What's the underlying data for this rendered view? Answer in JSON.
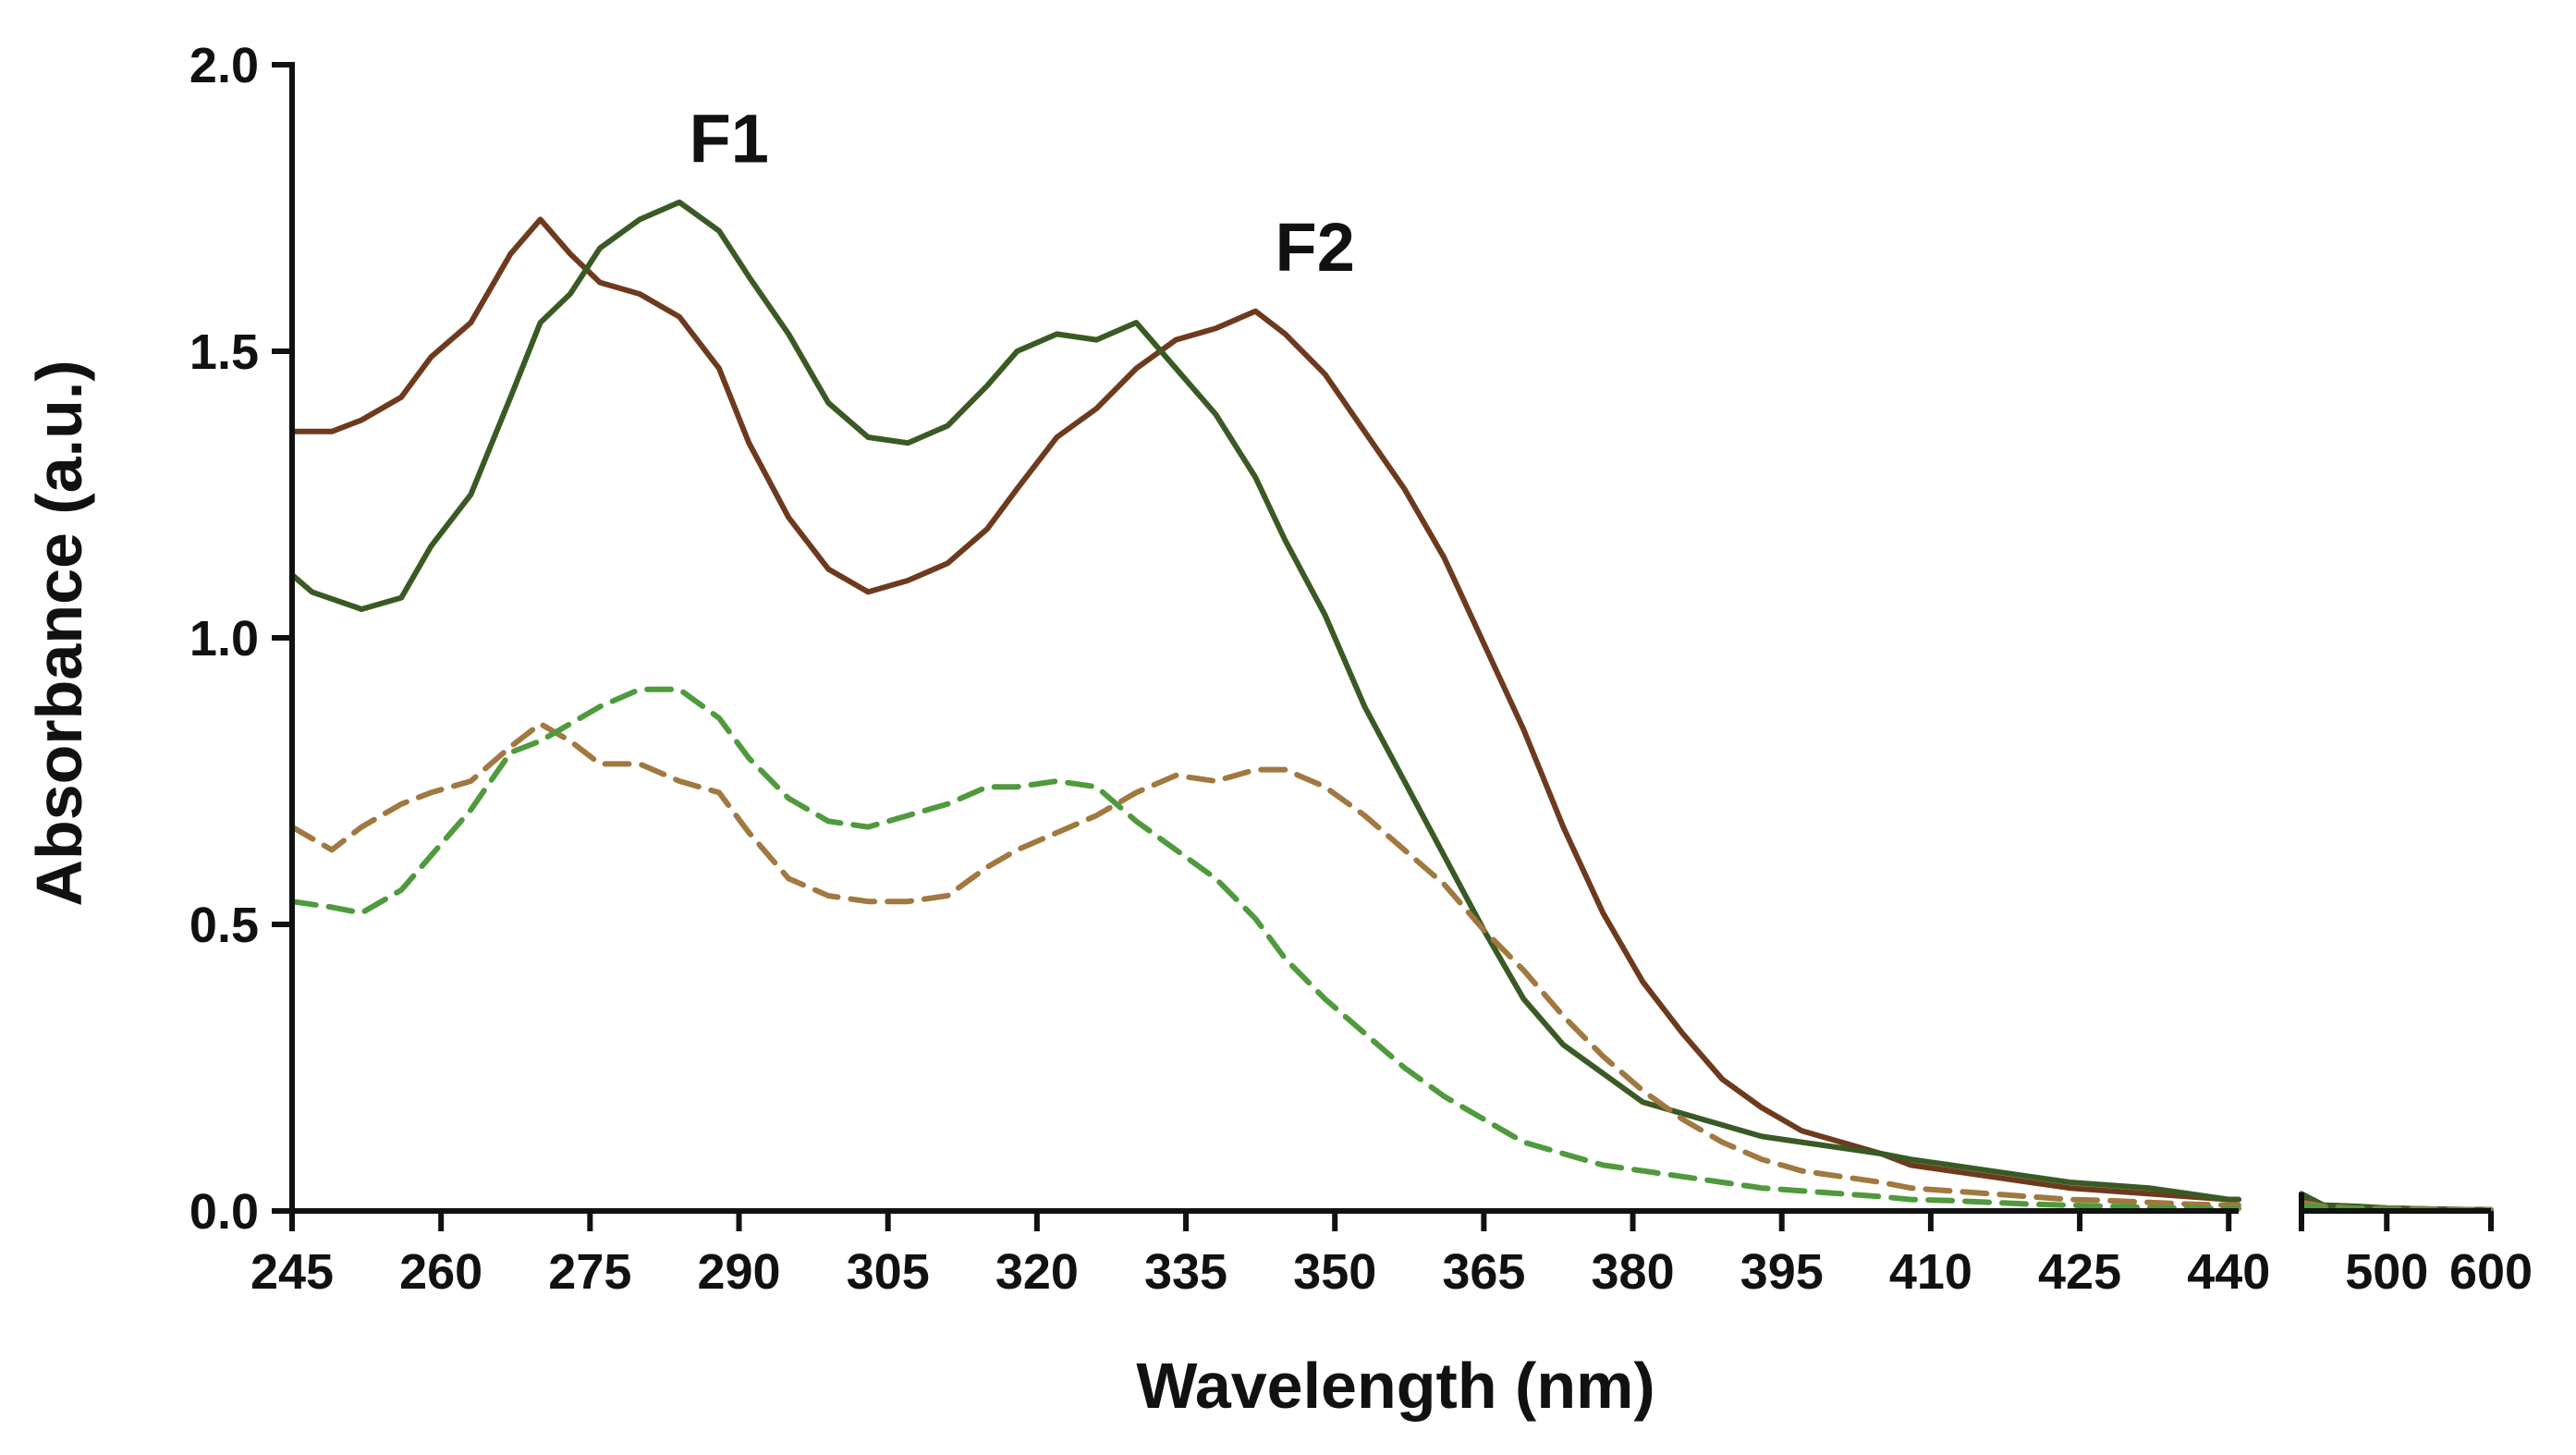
{
  "chart_data": {
    "type": "line",
    "title": "",
    "xlabel": "Wavelength (nm)",
    "ylabel": "Absorbance (a.u.)",
    "ylim": [
      0,
      2.0
    ],
    "yticks": [
      "0.0",
      "0.5",
      "1.0",
      "1.5",
      "2.0"
    ],
    "xticks_segment1": [
      "245",
      "260",
      "275",
      "290",
      "305",
      "320",
      "335",
      "350",
      "365",
      "380",
      "395",
      "410",
      "425",
      "440"
    ],
    "xticks_segment2": [
      "500",
      "600"
    ],
    "x_axis_break": {
      "segment1": [
        245,
        441
      ],
      "segment2": [
        446,
        600
      ]
    },
    "annotations": [
      {
        "text": "F1",
        "x": 289,
        "y": 1.83
      },
      {
        "text": "F2",
        "x": 348,
        "y": 1.64
      }
    ],
    "series": [
      {
        "name": "brown-solid",
        "color": "#6e3a1e",
        "dash": false,
        "x": [
          245,
          249,
          252,
          256,
          259,
          263,
          267,
          270,
          273,
          276,
          280,
          284,
          288,
          291,
          295,
          299,
          303,
          307,
          311,
          315,
          318,
          322,
          326,
          330,
          334,
          338,
          342,
          345,
          349,
          353,
          357,
          361,
          365,
          369,
          373,
          377,
          381,
          385,
          389,
          393,
          397,
          401,
          405,
          408,
          412,
          416,
          420,
          424,
          428,
          432,
          436,
          440,
          441,
          446,
          460,
          480,
          500,
          550,
          600
        ],
        "y": [
          1.36,
          1.36,
          1.38,
          1.42,
          1.49,
          1.55,
          1.67,
          1.73,
          1.67,
          1.62,
          1.6,
          1.56,
          1.47,
          1.34,
          1.21,
          1.12,
          1.08,
          1.1,
          1.13,
          1.19,
          1.26,
          1.35,
          1.4,
          1.47,
          1.52,
          1.54,
          1.57,
          1.53,
          1.46,
          1.36,
          1.26,
          1.14,
          0.99,
          0.84,
          0.67,
          0.52,
          0.4,
          0.31,
          0.23,
          0.18,
          0.14,
          0.12,
          0.1,
          0.08,
          0.07,
          0.06,
          0.05,
          0.04,
          0.035,
          0.03,
          0.025,
          0.02,
          0.02,
          0.02,
          0.01,
          0.008,
          0.005,
          0.003,
          0.002
        ]
      },
      {
        "name": "green-solid",
        "color": "#3a5a24",
        "dash": false,
        "x": [
          245,
          247,
          252,
          256,
          259,
          263,
          267,
          270,
          273,
          276,
          280,
          284,
          288,
          291,
          295,
          299,
          303,
          307,
          311,
          315,
          318,
          322,
          326,
          330,
          334,
          338,
          342,
          345,
          349,
          353,
          357,
          361,
          365,
          369,
          373,
          377,
          381,
          385,
          389,
          393,
          397,
          401,
          405,
          408,
          412,
          416,
          420,
          424,
          428,
          432,
          436,
          440,
          441,
          446,
          460,
          480,
          500,
          550,
          600
        ],
        "y": [
          1.11,
          1.08,
          1.05,
          1.07,
          1.16,
          1.25,
          1.42,
          1.55,
          1.6,
          1.68,
          1.73,
          1.76,
          1.71,
          1.63,
          1.53,
          1.41,
          1.35,
          1.34,
          1.37,
          1.44,
          1.5,
          1.53,
          1.52,
          1.55,
          1.47,
          1.39,
          1.28,
          1.17,
          1.04,
          0.88,
          0.75,
          0.62,
          0.49,
          0.37,
          0.29,
          0.24,
          0.19,
          0.17,
          0.15,
          0.13,
          0.12,
          0.11,
          0.1,
          0.09,
          0.08,
          0.07,
          0.06,
          0.05,
          0.045,
          0.04,
          0.03,
          0.02,
          0.02,
          0.03,
          0.01,
          0.008,
          0.005,
          0.003,
          0.002
        ]
      },
      {
        "name": "brown-dashed",
        "color": "#a07840",
        "dash": true,
        "x": [
          245,
          249,
          252,
          256,
          259,
          263,
          267,
          270,
          273,
          276,
          280,
          284,
          288,
          291,
          295,
          299,
          303,
          307,
          311,
          315,
          318,
          322,
          326,
          330,
          334,
          338,
          342,
          345,
          349,
          353,
          357,
          361,
          365,
          369,
          373,
          377,
          381,
          385,
          389,
          393,
          397,
          401,
          405,
          408,
          412,
          416,
          420,
          424,
          428,
          432,
          436,
          440,
          441,
          446,
          460,
          480,
          500,
          550,
          600
        ],
        "y": [
          0.67,
          0.63,
          0.67,
          0.71,
          0.73,
          0.75,
          0.81,
          0.85,
          0.82,
          0.78,
          0.78,
          0.75,
          0.73,
          0.66,
          0.58,
          0.55,
          0.54,
          0.54,
          0.55,
          0.6,
          0.63,
          0.66,
          0.69,
          0.73,
          0.76,
          0.75,
          0.77,
          0.77,
          0.74,
          0.69,
          0.63,
          0.57,
          0.49,
          0.42,
          0.34,
          0.27,
          0.21,
          0.16,
          0.12,
          0.09,
          0.07,
          0.06,
          0.05,
          0.04,
          0.035,
          0.03,
          0.025,
          0.02,
          0.018,
          0.015,
          0.012,
          0.01,
          0.01,
          0.015,
          0.008,
          0.005,
          0.004,
          0.003,
          0.002
        ]
      },
      {
        "name": "green-dashed",
        "color": "#4f9a3c",
        "dash": true,
        "x": [
          245,
          249,
          252,
          256,
          259,
          263,
          267,
          270,
          273,
          276,
          280,
          284,
          288,
          291,
          295,
          299,
          303,
          307,
          311,
          315,
          318,
          322,
          326,
          330,
          334,
          338,
          342,
          345,
          349,
          353,
          357,
          361,
          365,
          369,
          373,
          377,
          381,
          385,
          389,
          393,
          397,
          401,
          405,
          408,
          412,
          416,
          420,
          424,
          428,
          432,
          436,
          440,
          441,
          446,
          460,
          480,
          500,
          550,
          600
        ],
        "y": [
          0.54,
          0.53,
          0.52,
          0.56,
          0.62,
          0.7,
          0.8,
          0.82,
          0.85,
          0.88,
          0.91,
          0.91,
          0.86,
          0.79,
          0.72,
          0.68,
          0.67,
          0.69,
          0.71,
          0.74,
          0.74,
          0.75,
          0.74,
          0.68,
          0.63,
          0.58,
          0.51,
          0.44,
          0.37,
          0.31,
          0.25,
          0.2,
          0.16,
          0.12,
          0.1,
          0.08,
          0.07,
          0.06,
          0.05,
          0.04,
          0.035,
          0.03,
          0.025,
          0.02,
          0.018,
          0.015,
          0.012,
          0.01,
          0.008,
          0.006,
          0.005,
          0.004,
          0.004,
          0.01,
          0.006,
          0.004,
          0.003,
          0.002,
          0.001
        ]
      }
    ]
  }
}
